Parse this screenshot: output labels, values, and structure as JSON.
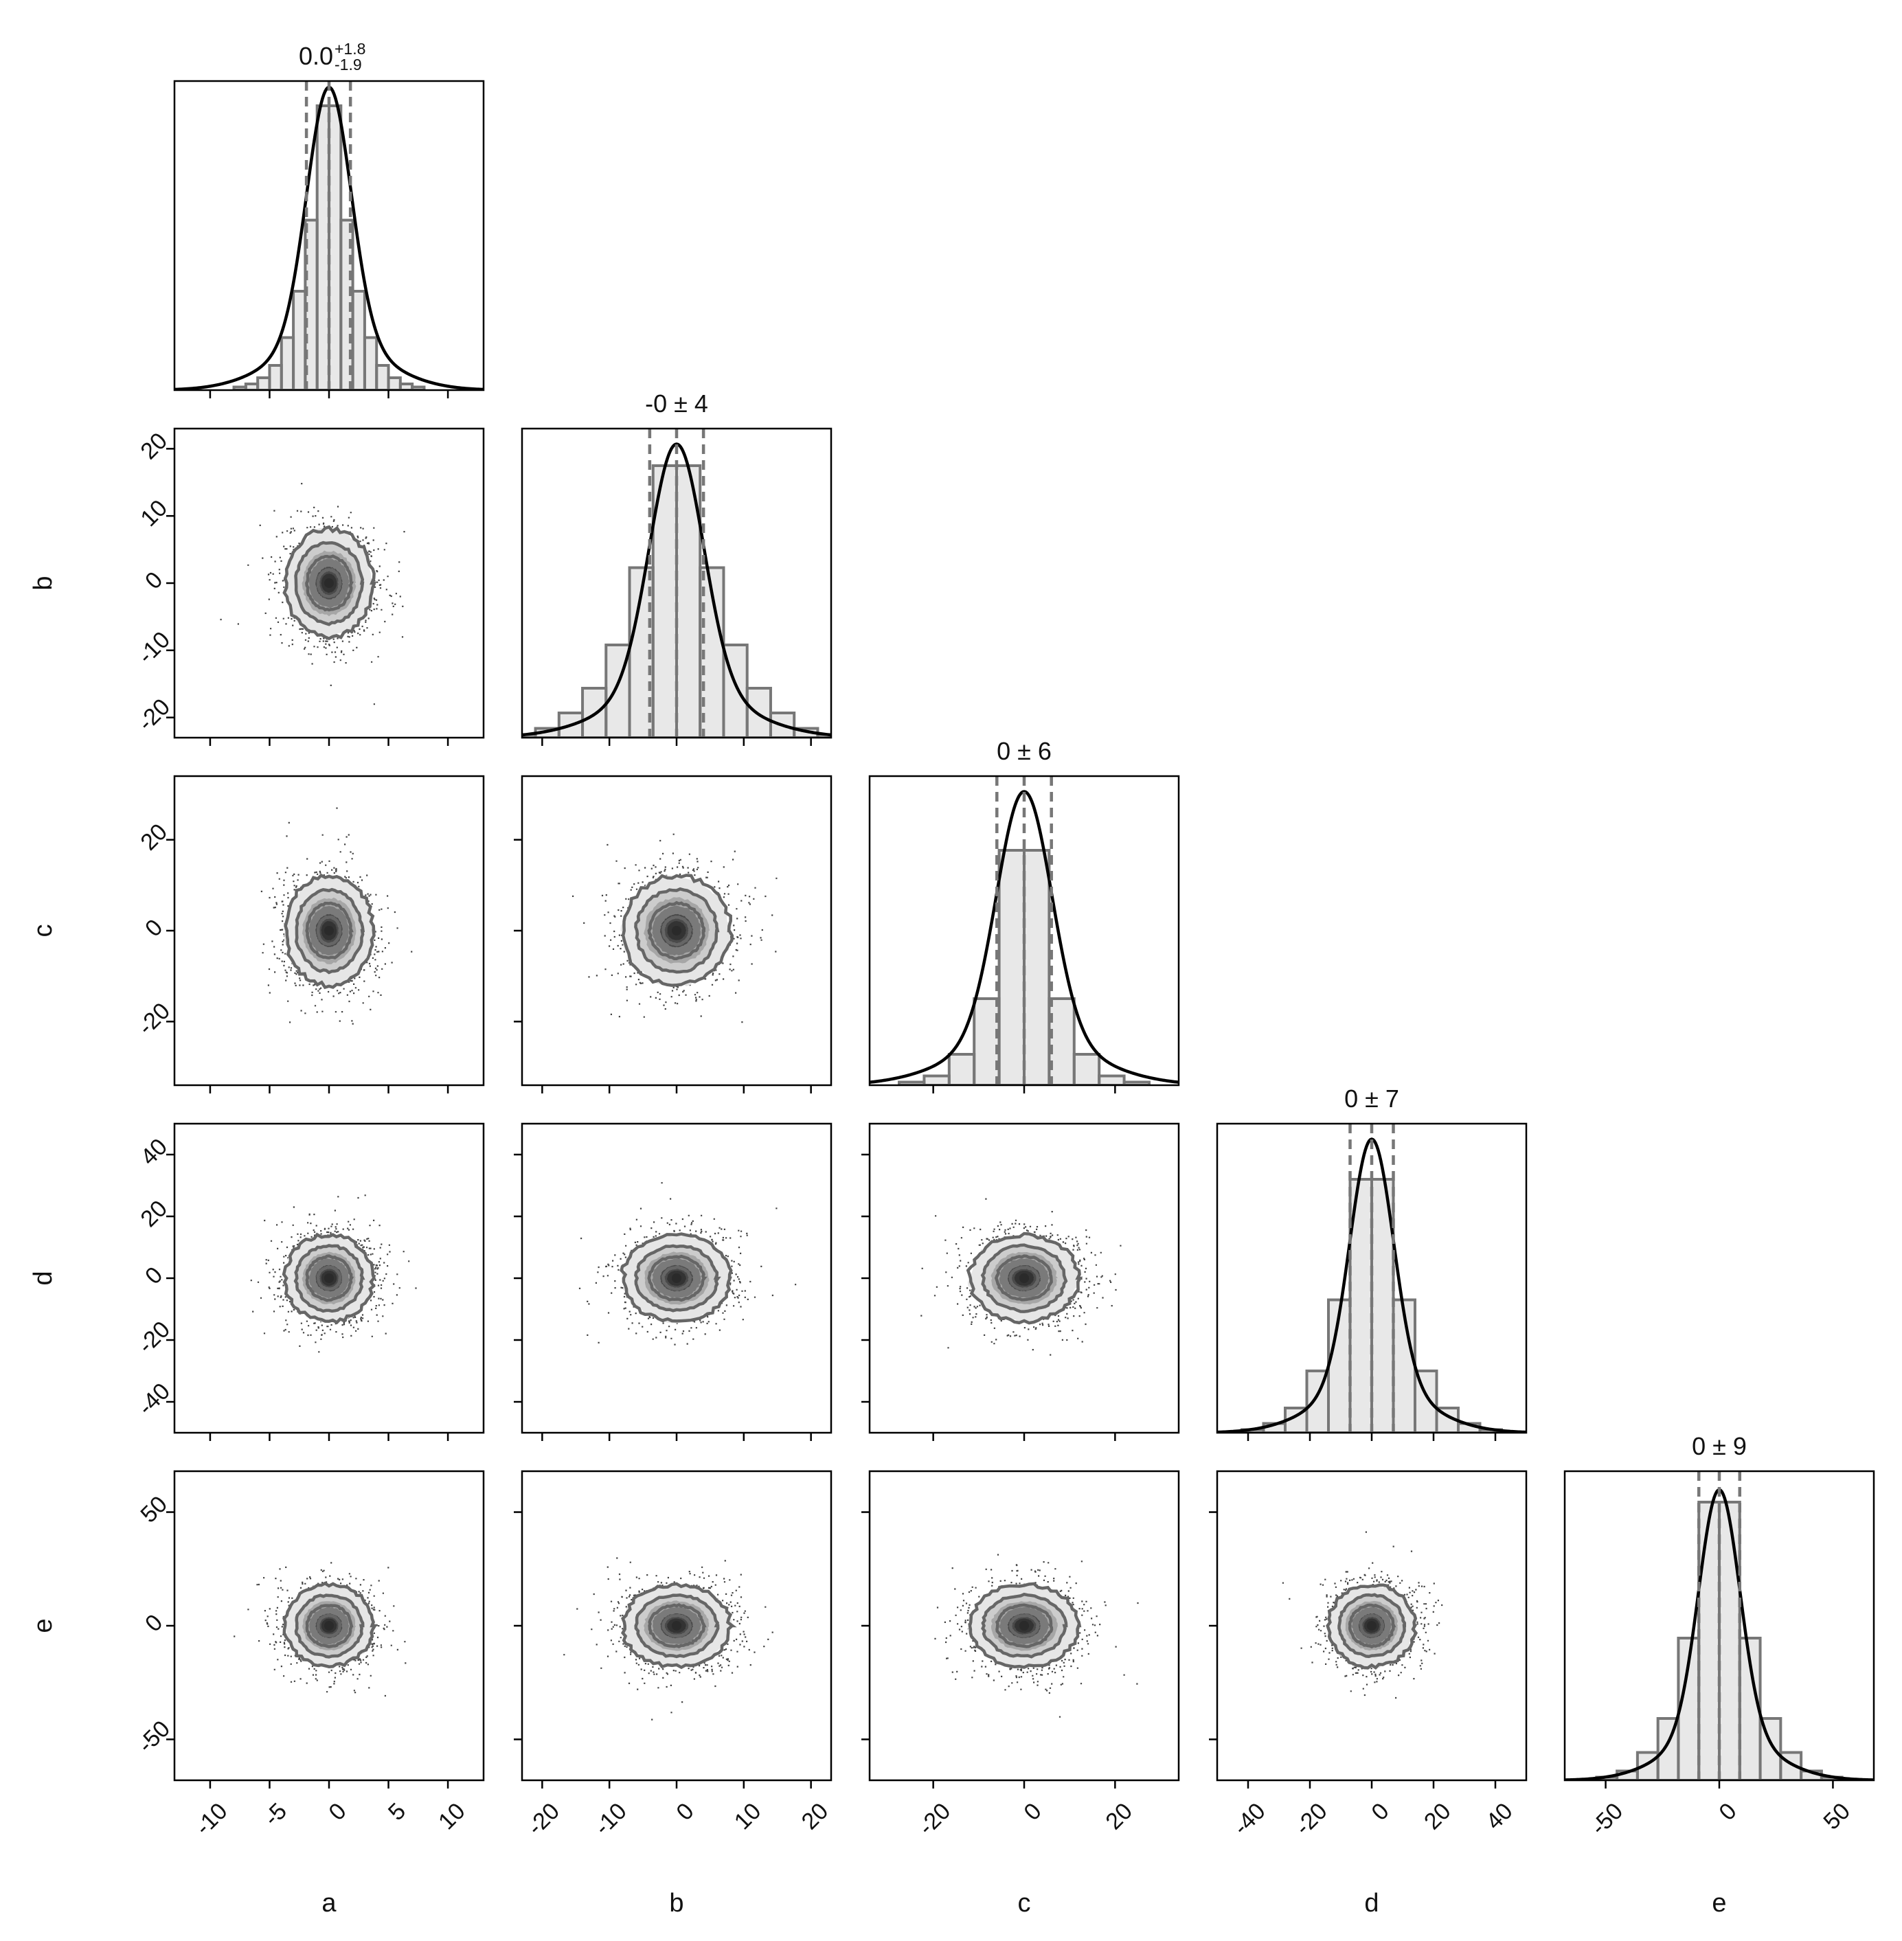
{
  "chart_data": {
    "type": "corner",
    "parameters": [
      "a",
      "b",
      "c",
      "d",
      "e"
    ],
    "grid": false,
    "legend": "none",
    "colors": {
      "hist_fill": "#e8e8e8",
      "hist_edge": "#777777",
      "kde_line": "#000000",
      "quantile_line": "#777777",
      "scatter_point": "#222222",
      "contour_line": "#666666",
      "density_levels": [
        "#e6e6e6",
        "#cccccc",
        "#a6a6a6",
        "#7a7a7a",
        "#4a4a4a",
        "#333333"
      ]
    },
    "ranges": {
      "a": [
        -13,
        13
      ],
      "b": [
        -23,
        23
      ],
      "c": [
        -34,
        34
      ],
      "d": [
        -50,
        50
      ],
      "e": [
        -68,
        68
      ]
    },
    "ticks": {
      "a": [
        -10,
        -5,
        0,
        5,
        10
      ],
      "b": [
        -20,
        -10,
        0,
        10,
        20
      ],
      "c": [
        -20,
        0,
        20
      ],
      "d": [
        -40,
        -20,
        0,
        20,
        40
      ],
      "e": [
        -50,
        0,
        50
      ]
    },
    "sigmas": {
      "a": 1.85,
      "b": 4,
      "c": 6,
      "d": 7,
      "e": 9
    },
    "diagonal": [
      {
        "param": "a",
        "title": {
          "value": "0.0",
          "upper": "+1.8",
          "lower": "-1.9"
        },
        "quantiles": [
          -1.9,
          0.0,
          1.8
        ],
        "bin_width": 1,
        "kde_peak": 0.98,
        "hist_values": [
          0.01,
          0.02,
          0.04,
          0.08,
          0.17,
          0.32,
          0.55,
          0.92,
          0.92,
          0.55,
          0.32,
          0.17,
          0.08,
          0.04,
          0.02,
          0.01
        ]
      },
      {
        "param": "b",
        "title": {
          "value": "-0 ± 4"
        },
        "quantiles": [
          -4,
          0,
          4
        ],
        "bin_width": 3.5,
        "kde_peak": 0.95,
        "hist_values": [
          0.01,
          0.03,
          0.08,
          0.16,
          0.3,
          0.55,
          0.88,
          0.88,
          0.55,
          0.3,
          0.16,
          0.08,
          0.03,
          0.01
        ]
      },
      {
        "param": "c",
        "title": {
          "value": "0 ± 6"
        },
        "quantiles": [
          -6,
          0,
          6
        ],
        "bin_width": 5.5,
        "kde_peak": 0.95,
        "hist_values": [
          0.01,
          0.03,
          0.1,
          0.28,
          0.76,
          0.76,
          0.28,
          0.1,
          0.03,
          0.01
        ]
      },
      {
        "param": "d",
        "title": {
          "value": "0 ± 7"
        },
        "quantiles": [
          -7,
          0,
          7
        ],
        "bin_width": 7,
        "kde_peak": 0.95,
        "hist_values": [
          0.01,
          0.03,
          0.08,
          0.2,
          0.43,
          0.82,
          0.82,
          0.43,
          0.2,
          0.08,
          0.03,
          0.01
        ]
      },
      {
        "param": "e",
        "title": {
          "value": "0 ± 9"
        },
        "quantiles": [
          -9,
          0,
          9
        ],
        "bin_width": 9,
        "kde_peak": 0.94,
        "hist_values": [
          0.01,
          0.03,
          0.09,
          0.2,
          0.46,
          0.9,
          0.9,
          0.46,
          0.2,
          0.09,
          0.03,
          0.01
        ]
      }
    ],
    "scatter_samples_per_panel": 1400,
    "contour_sigma_levels": [
      0.5,
      1.0,
      1.5,
      2.0
    ]
  }
}
